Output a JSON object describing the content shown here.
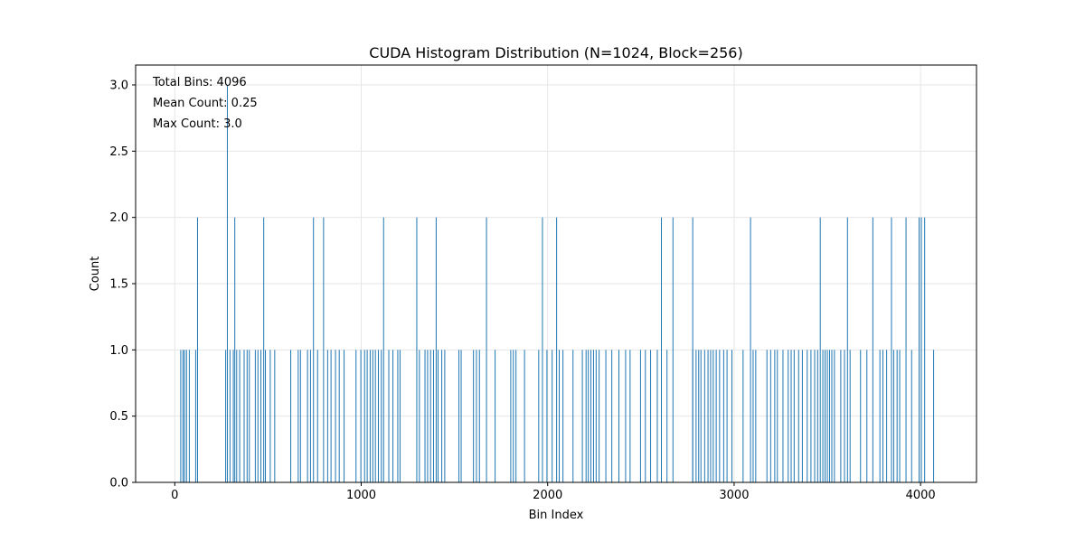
{
  "chart_data": {
    "type": "bar",
    "title": "CUDA Histogram Distribution (N=1024, Block=256)",
    "xlabel": "Bin Index",
    "ylabel": "Count",
    "xlim": [
      -210,
      4300
    ],
    "ylim": [
      0,
      3.15
    ],
    "xticks": [
      0,
      1000,
      2000,
      3000,
      4000
    ],
    "yticks": [
      0.0,
      0.5,
      1.0,
      1.5,
      2.0,
      2.5,
      3.0
    ],
    "grid": true,
    "bar_color": "#1f77b4",
    "stats": [
      "Total Bins: 4096",
      "Mean Count: 0.25",
      "Max Count: 3.0"
    ],
    "bins": [
      {
        "x": 282,
        "y": 3
      },
      {
        "x": 122,
        "y": 2
      },
      {
        "x": 322,
        "y": 2
      },
      {
        "x": 477,
        "y": 2
      },
      {
        "x": 744,
        "y": 2
      },
      {
        "x": 798,
        "y": 2
      },
      {
        "x": 1120,
        "y": 2
      },
      {
        "x": 1298,
        "y": 2
      },
      {
        "x": 1402,
        "y": 2
      },
      {
        "x": 1672,
        "y": 2
      },
      {
        "x": 1972,
        "y": 2
      },
      {
        "x": 2048,
        "y": 2
      },
      {
        "x": 2610,
        "y": 2
      },
      {
        "x": 2672,
        "y": 2
      },
      {
        "x": 2778,
        "y": 2
      },
      {
        "x": 3088,
        "y": 2
      },
      {
        "x": 3462,
        "y": 2
      },
      {
        "x": 3608,
        "y": 2
      },
      {
        "x": 3744,
        "y": 2
      },
      {
        "x": 3844,
        "y": 2
      },
      {
        "x": 3922,
        "y": 2
      },
      {
        "x": 3992,
        "y": 2
      },
      {
        "x": 4004,
        "y": 2
      },
      {
        "x": 4022,
        "y": 2
      },
      {
        "x": 32,
        "y": 1
      },
      {
        "x": 44,
        "y": 1
      },
      {
        "x": 52,
        "y": 1
      },
      {
        "x": 63,
        "y": 1
      },
      {
        "x": 78,
        "y": 1
      },
      {
        "x": 112,
        "y": 1
      },
      {
        "x": 273,
        "y": 1
      },
      {
        "x": 296,
        "y": 1
      },
      {
        "x": 314,
        "y": 1
      },
      {
        "x": 332,
        "y": 1
      },
      {
        "x": 348,
        "y": 1
      },
      {
        "x": 372,
        "y": 1
      },
      {
        "x": 388,
        "y": 1
      },
      {
        "x": 400,
        "y": 1
      },
      {
        "x": 432,
        "y": 1
      },
      {
        "x": 446,
        "y": 1
      },
      {
        "x": 462,
        "y": 1
      },
      {
        "x": 486,
        "y": 1
      },
      {
        "x": 512,
        "y": 1
      },
      {
        "x": 536,
        "y": 1
      },
      {
        "x": 622,
        "y": 1
      },
      {
        "x": 662,
        "y": 1
      },
      {
        "x": 674,
        "y": 1
      },
      {
        "x": 712,
        "y": 1
      },
      {
        "x": 728,
        "y": 1
      },
      {
        "x": 766,
        "y": 1
      },
      {
        "x": 820,
        "y": 1
      },
      {
        "x": 838,
        "y": 1
      },
      {
        "x": 862,
        "y": 1
      },
      {
        "x": 882,
        "y": 1
      },
      {
        "x": 908,
        "y": 1
      },
      {
        "x": 972,
        "y": 1
      },
      {
        "x": 998,
        "y": 1
      },
      {
        "x": 1018,
        "y": 1
      },
      {
        "x": 1032,
        "y": 1
      },
      {
        "x": 1048,
        "y": 1
      },
      {
        "x": 1062,
        "y": 1
      },
      {
        "x": 1076,
        "y": 1
      },
      {
        "x": 1092,
        "y": 1
      },
      {
        "x": 1108,
        "y": 1
      },
      {
        "x": 1148,
        "y": 1
      },
      {
        "x": 1170,
        "y": 1
      },
      {
        "x": 1196,
        "y": 1
      },
      {
        "x": 1208,
        "y": 1
      },
      {
        "x": 1312,
        "y": 1
      },
      {
        "x": 1342,
        "y": 1
      },
      {
        "x": 1356,
        "y": 1
      },
      {
        "x": 1372,
        "y": 1
      },
      {
        "x": 1388,
        "y": 1
      },
      {
        "x": 1412,
        "y": 1
      },
      {
        "x": 1432,
        "y": 1
      },
      {
        "x": 1448,
        "y": 1
      },
      {
        "x": 1524,
        "y": 1
      },
      {
        "x": 1536,
        "y": 1
      },
      {
        "x": 1602,
        "y": 1
      },
      {
        "x": 1618,
        "y": 1
      },
      {
        "x": 1634,
        "y": 1
      },
      {
        "x": 1718,
        "y": 1
      },
      {
        "x": 1802,
        "y": 1
      },
      {
        "x": 1816,
        "y": 1
      },
      {
        "x": 1830,
        "y": 1
      },
      {
        "x": 1876,
        "y": 1
      },
      {
        "x": 1952,
        "y": 1
      },
      {
        "x": 1996,
        "y": 1
      },
      {
        "x": 2024,
        "y": 1
      },
      {
        "x": 2062,
        "y": 1
      },
      {
        "x": 2082,
        "y": 1
      },
      {
        "x": 2136,
        "y": 1
      },
      {
        "x": 2186,
        "y": 1
      },
      {
        "x": 2206,
        "y": 1
      },
      {
        "x": 2218,
        "y": 1
      },
      {
        "x": 2232,
        "y": 1
      },
      {
        "x": 2246,
        "y": 1
      },
      {
        "x": 2260,
        "y": 1
      },
      {
        "x": 2276,
        "y": 1
      },
      {
        "x": 2312,
        "y": 1
      },
      {
        "x": 2344,
        "y": 1
      },
      {
        "x": 2382,
        "y": 1
      },
      {
        "x": 2418,
        "y": 1
      },
      {
        "x": 2442,
        "y": 1
      },
      {
        "x": 2498,
        "y": 1
      },
      {
        "x": 2524,
        "y": 1
      },
      {
        "x": 2552,
        "y": 1
      },
      {
        "x": 2588,
        "y": 1
      },
      {
        "x": 2640,
        "y": 1
      },
      {
        "x": 2778,
        "y": 1
      },
      {
        "x": 2796,
        "y": 1
      },
      {
        "x": 2810,
        "y": 1
      },
      {
        "x": 2822,
        "y": 1
      },
      {
        "x": 2842,
        "y": 1
      },
      {
        "x": 2860,
        "y": 1
      },
      {
        "x": 2874,
        "y": 1
      },
      {
        "x": 2888,
        "y": 1
      },
      {
        "x": 2904,
        "y": 1
      },
      {
        "x": 2922,
        "y": 1
      },
      {
        "x": 2944,
        "y": 1
      },
      {
        "x": 2962,
        "y": 1
      },
      {
        "x": 2988,
        "y": 1
      },
      {
        "x": 3048,
        "y": 1
      },
      {
        "x": 3102,
        "y": 1
      },
      {
        "x": 3116,
        "y": 1
      },
      {
        "x": 3176,
        "y": 1
      },
      {
        "x": 3196,
        "y": 1
      },
      {
        "x": 3218,
        "y": 1
      },
      {
        "x": 3232,
        "y": 1
      },
      {
        "x": 3262,
        "y": 1
      },
      {
        "x": 3290,
        "y": 1
      },
      {
        "x": 3306,
        "y": 1
      },
      {
        "x": 3322,
        "y": 1
      },
      {
        "x": 3346,
        "y": 1
      },
      {
        "x": 3366,
        "y": 1
      },
      {
        "x": 3392,
        "y": 1
      },
      {
        "x": 3412,
        "y": 1
      },
      {
        "x": 3432,
        "y": 1
      },
      {
        "x": 3448,
        "y": 1
      },
      {
        "x": 3476,
        "y": 1
      },
      {
        "x": 3488,
        "y": 1
      },
      {
        "x": 3500,
        "y": 1
      },
      {
        "x": 3512,
        "y": 1
      },
      {
        "x": 3524,
        "y": 1
      },
      {
        "x": 3538,
        "y": 1
      },
      {
        "x": 3572,
        "y": 1
      },
      {
        "x": 3592,
        "y": 1
      },
      {
        "x": 3622,
        "y": 1
      },
      {
        "x": 3678,
        "y": 1
      },
      {
        "x": 3712,
        "y": 1
      },
      {
        "x": 3782,
        "y": 1
      },
      {
        "x": 3798,
        "y": 1
      },
      {
        "x": 3818,
        "y": 1
      },
      {
        "x": 3856,
        "y": 1
      },
      {
        "x": 3874,
        "y": 1
      },
      {
        "x": 3888,
        "y": 1
      },
      {
        "x": 3952,
        "y": 1
      },
      {
        "x": 4070,
        "y": 1
      }
    ]
  }
}
